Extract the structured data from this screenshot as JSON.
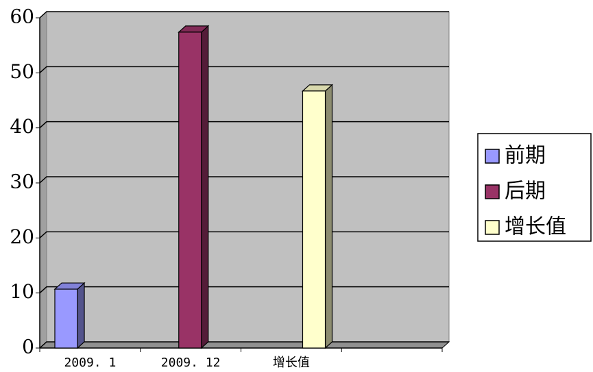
{
  "chart_data": {
    "type": "bar3d",
    "categories": [
      "2009. 1",
      "2009. 12",
      "增长值",
      null
    ],
    "series": [
      {
        "name": "前期",
        "color": "#9999ff",
        "values": [
          10.7,
          null,
          null,
          null
        ]
      },
      {
        "name": "后期",
        "color": "#993366",
        "values": [
          null,
          57.4,
          null,
          null
        ]
      },
      {
        "name": "增长值",
        "color": "#ffffcc",
        "values": [
          null,
          null,
          46.7,
          null
        ]
      }
    ],
    "ylim": [
      0,
      60
    ],
    "yticks": [
      0,
      10,
      20,
      30,
      40,
      50,
      60
    ],
    "grid": true,
    "legend": "right"
  }
}
